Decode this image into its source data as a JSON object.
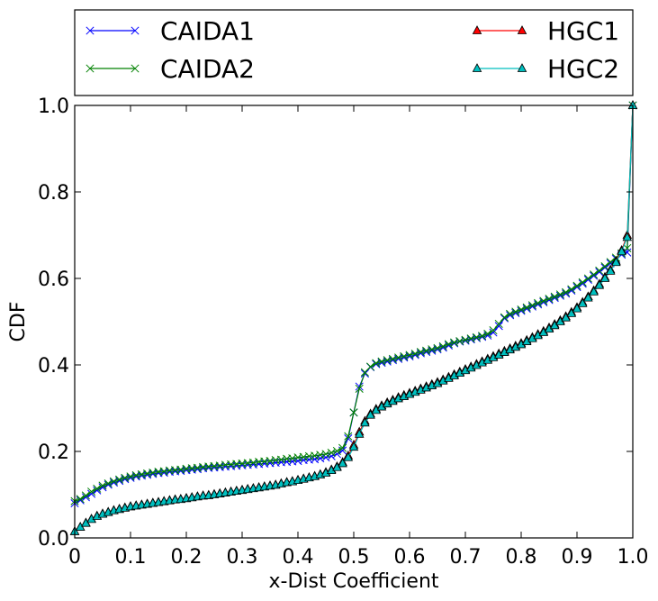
{
  "chart_data": {
    "type": "line",
    "title": "",
    "xlabel": "x-Dist Coefficient",
    "ylabel": "CDF",
    "xlim": [
      0,
      1
    ],
    "ylim": [
      0,
      1
    ],
    "xticks": [
      0,
      0.1,
      0.2,
      0.3,
      0.4,
      0.5,
      0.6,
      0.7,
      0.8,
      0.9,
      1.0
    ],
    "yticks": [
      0,
      0.2,
      0.4,
      0.6,
      0.8,
      1.0
    ],
    "xtick_labels": [
      "0",
      "0.1",
      "0.2",
      "0.3",
      "0.4",
      "0.5",
      "0.6",
      "0.7",
      "0.8",
      "0.9",
      "1.0"
    ],
    "ytick_labels": [
      "0.0",
      "0.2",
      "0.4",
      "0.6",
      "0.8",
      "1.0"
    ],
    "grid": false,
    "legend_position": "top, outside plot area, two columns",
    "x": [
      0,
      0.01,
      0.02,
      0.03,
      0.04,
      0.05,
      0.06,
      0.07,
      0.08,
      0.09,
      0.1,
      0.11,
      0.12,
      0.13,
      0.14,
      0.15,
      0.16,
      0.17,
      0.18,
      0.19,
      0.2,
      0.21,
      0.22,
      0.23,
      0.24,
      0.25,
      0.26,
      0.27,
      0.28,
      0.29,
      0.3,
      0.31,
      0.32,
      0.33,
      0.34,
      0.35,
      0.36,
      0.37,
      0.38,
      0.39,
      0.4,
      0.41,
      0.42,
      0.43,
      0.44,
      0.45,
      0.46,
      0.47,
      0.48,
      0.49,
      0.5,
      0.51,
      0.52,
      0.53,
      0.54,
      0.55,
      0.56,
      0.57,
      0.58,
      0.59,
      0.6,
      0.61,
      0.62,
      0.63,
      0.64,
      0.65,
      0.66,
      0.67,
      0.68,
      0.69,
      0.7,
      0.71,
      0.72,
      0.73,
      0.74,
      0.75,
      0.76,
      0.77,
      0.78,
      0.79,
      0.8,
      0.81,
      0.82,
      0.83,
      0.84,
      0.85,
      0.86,
      0.87,
      0.88,
      0.89,
      0.9,
      0.91,
      0.92,
      0.93,
      0.94,
      0.95,
      0.96,
      0.97,
      0.98,
      0.99,
      1.0
    ],
    "series": [
      {
        "name": "CAIDA1",
        "color": "#0000ff",
        "marker": "x",
        "values": [
          0.08,
          0.087,
          0.094,
          0.102,
          0.11,
          0.117,
          0.123,
          0.128,
          0.132,
          0.136,
          0.139,
          0.142,
          0.144,
          0.146,
          0.148,
          0.15,
          0.151,
          0.153,
          0.154,
          0.155,
          0.157,
          0.158,
          0.159,
          0.161,
          0.162,
          0.163,
          0.164,
          0.165,
          0.166,
          0.167,
          0.168,
          0.169,
          0.17,
          0.171,
          0.172,
          0.173,
          0.174,
          0.175,
          0.176,
          0.177,
          0.178,
          0.18,
          0.181,
          0.182,
          0.184,
          0.186,
          0.189,
          0.194,
          0.202,
          0.23,
          0.29,
          0.35,
          0.38,
          0.395,
          0.402,
          0.405,
          0.408,
          0.411,
          0.414,
          0.417,
          0.42,
          0.423,
          0.427,
          0.43,
          0.433,
          0.436,
          0.44,
          0.445,
          0.45,
          0.454,
          0.456,
          0.459,
          0.462,
          0.465,
          0.468,
          0.475,
          0.49,
          0.508,
          0.515,
          0.52,
          0.525,
          0.53,
          0.535,
          0.54,
          0.545,
          0.55,
          0.555,
          0.56,
          0.565,
          0.572,
          0.58,
          0.588,
          0.597,
          0.606,
          0.615,
          0.625,
          0.635,
          0.645,
          0.655,
          0.66,
          1.0
        ]
      },
      {
        "name": "CAIDA2",
        "color": "#008000",
        "marker": "x",
        "values": [
          0.085,
          0.09,
          0.098,
          0.107,
          0.114,
          0.121,
          0.126,
          0.131,
          0.135,
          0.139,
          0.142,
          0.145,
          0.147,
          0.149,
          0.151,
          0.153,
          0.154,
          0.156,
          0.157,
          0.158,
          0.16,
          0.161,
          0.162,
          0.164,
          0.165,
          0.166,
          0.167,
          0.169,
          0.17,
          0.171,
          0.172,
          0.173,
          0.174,
          0.176,
          0.177,
          0.178,
          0.18,
          0.181,
          0.183,
          0.184,
          0.186,
          0.187,
          0.189,
          0.19,
          0.192,
          0.194,
          0.197,
          0.201,
          0.208,
          0.235,
          0.29,
          0.345,
          0.383,
          0.396,
          0.404,
          0.408,
          0.411,
          0.414,
          0.417,
          0.42,
          0.423,
          0.426,
          0.43,
          0.433,
          0.436,
          0.439,
          0.443,
          0.448,
          0.452,
          0.455,
          0.458,
          0.461,
          0.464,
          0.467,
          0.472,
          0.48,
          0.495,
          0.51,
          0.518,
          0.523,
          0.528,
          0.533,
          0.538,
          0.543,
          0.548,
          0.553,
          0.558,
          0.563,
          0.568,
          0.575,
          0.583,
          0.591,
          0.6,
          0.609,
          0.618,
          0.628,
          0.638,
          0.648,
          0.658,
          0.67,
          1.0
        ]
      },
      {
        "name": "HGC1",
        "color": "#ff0000",
        "marker": "triangle",
        "values": [
          0.015,
          0.025,
          0.035,
          0.044,
          0.051,
          0.056,
          0.06,
          0.064,
          0.067,
          0.07,
          0.073,
          0.075,
          0.077,
          0.079,
          0.081,
          0.083,
          0.085,
          0.087,
          0.089,
          0.09,
          0.092,
          0.094,
          0.096,
          0.098,
          0.099,
          0.101,
          0.103,
          0.105,
          0.107,
          0.109,
          0.111,
          0.113,
          0.115,
          0.117,
          0.119,
          0.121,
          0.123,
          0.126,
          0.129,
          0.131,
          0.134,
          0.137,
          0.14,
          0.143,
          0.147,
          0.152,
          0.158,
          0.165,
          0.175,
          0.19,
          0.215,
          0.245,
          0.27,
          0.287,
          0.298,
          0.306,
          0.313,
          0.319,
          0.325,
          0.33,
          0.335,
          0.34,
          0.345,
          0.35,
          0.355,
          0.36,
          0.366,
          0.372,
          0.378,
          0.384,
          0.39,
          0.396,
          0.402,
          0.408,
          0.414,
          0.42,
          0.426,
          0.432,
          0.438,
          0.444,
          0.45,
          0.457,
          0.464,
          0.471,
          0.478,
          0.486,
          0.494,
          0.503,
          0.512,
          0.522,
          0.533,
          0.545,
          0.558,
          0.572,
          0.587,
          0.603,
          0.62,
          0.64,
          0.665,
          0.7,
          1.0
        ]
      },
      {
        "name": "HGC2",
        "color": "#00bfbf",
        "marker": "triangle",
        "values": [
          0.015,
          0.025,
          0.034,
          0.043,
          0.05,
          0.055,
          0.059,
          0.063,
          0.066,
          0.069,
          0.072,
          0.074,
          0.076,
          0.078,
          0.08,
          0.082,
          0.084,
          0.086,
          0.088,
          0.089,
          0.091,
          0.093,
          0.095,
          0.097,
          0.098,
          0.1,
          0.102,
          0.104,
          0.106,
          0.108,
          0.11,
          0.112,
          0.114,
          0.116,
          0.118,
          0.12,
          0.122,
          0.125,
          0.128,
          0.13,
          0.133,
          0.136,
          0.139,
          0.142,
          0.146,
          0.15,
          0.156,
          0.163,
          0.172,
          0.186,
          0.21,
          0.24,
          0.266,
          0.284,
          0.295,
          0.303,
          0.31,
          0.316,
          0.322,
          0.327,
          0.332,
          0.337,
          0.342,
          0.347,
          0.352,
          0.357,
          0.363,
          0.369,
          0.375,
          0.381,
          0.387,
          0.393,
          0.399,
          0.405,
          0.411,
          0.417,
          0.423,
          0.429,
          0.435,
          0.441,
          0.447,
          0.454,
          0.461,
          0.468,
          0.475,
          0.483,
          0.491,
          0.5,
          0.509,
          0.519,
          0.53,
          0.542,
          0.555,
          0.569,
          0.584,
          0.6,
          0.617,
          0.637,
          0.662,
          0.695,
          1.0
        ]
      }
    ]
  }
}
